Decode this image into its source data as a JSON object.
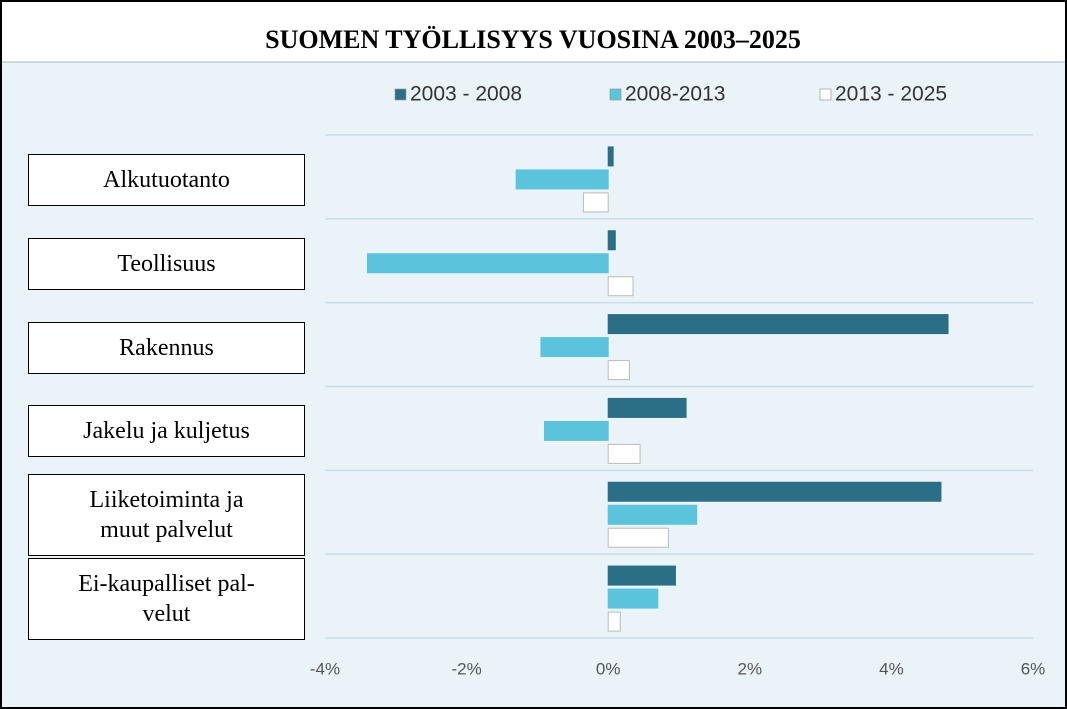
{
  "chart_data": {
    "type": "hbar",
    "title": "SUOMEN TYÖLLISYYS VUOSINA 2003–2025",
    "categories": [
      "Alkutuotanto",
      "Teollisuus",
      "Rakennus",
      "Jakelu ja kuljetus",
      "Liiketoiminta ja\nmuut palvelut",
      "Ei-kaupalliset pal-\nvelut"
    ],
    "series": [
      {
        "name": "2003 - 2008",
        "color": "#2a6f86",
        "values": [
          0.07,
          0.1,
          4.8,
          1.1,
          4.7,
          0.95
        ]
      },
      {
        "name": "2008-2013",
        "color": "#5bc4dc",
        "values": [
          -1.3,
          -3.4,
          -0.95,
          -0.9,
          1.25,
          0.7
        ]
      },
      {
        "name": "2013 - 2025",
        "color": "#ffffff",
        "values": [
          -0.35,
          0.35,
          0.3,
          0.45,
          0.85,
          0.17
        ]
      }
    ],
    "xlim": [
      -4,
      6
    ],
    "xticks": [
      {
        "value": -4,
        "label": "-4%"
      },
      {
        "value": -2,
        "label": "-2%"
      },
      {
        "value": 0,
        "label": "0%"
      },
      {
        "value": 2,
        "label": "2%"
      },
      {
        "value": 4,
        "label": "4%"
      },
      {
        "value": 6,
        "label": "6%"
      }
    ],
    "legend": "top"
  }
}
